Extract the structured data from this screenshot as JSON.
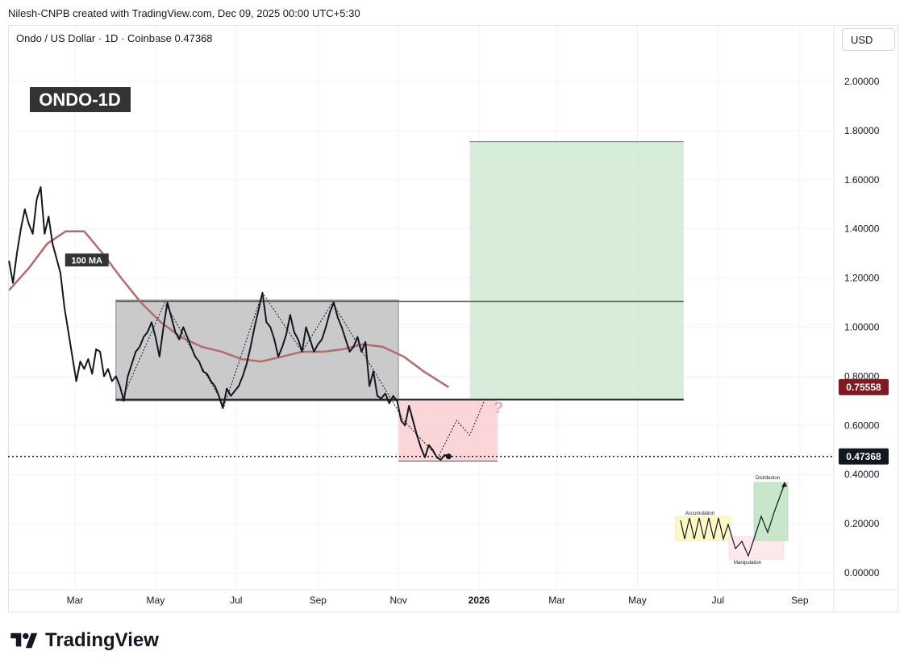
{
  "header": {
    "attribution": "Nilesh-CNPB created with TradingView.com, Dec 09, 2025 00:00 UTC+5:30"
  },
  "legend": {
    "symbol_line": "Ondo / US Dollar · 1D · Coinbase  0.47368"
  },
  "currency_button": "USD",
  "footer": {
    "brand": "TradingView"
  },
  "colors": {
    "price": "#131722",
    "ma": "#b46b6b",
    "range_box": "#b8b8b8",
    "target_box": "#c8e6c9",
    "drop_box": "#f8c8cc",
    "current_price_label": "#131722",
    "ma_price_label": "#801922"
  },
  "chart_data": {
    "type": "line",
    "title": "ONDO-1D",
    "xlabel": "",
    "ylabel": "",
    "x_ticks": [
      "Mar",
      "May",
      "Jul",
      "Sep",
      "Nov",
      "2026",
      "Mar",
      "May",
      "Jul",
      "Sep"
    ],
    "y_ticks": [
      "2.00000",
      "1.80000",
      "1.60000",
      "1.40000",
      "1.20000",
      "1.00000",
      "0.80000",
      "0.60000",
      "0.40000",
      "0.20000",
      "0.00000"
    ],
    "ylim": [
      0,
      2.0
    ],
    "grid": true,
    "price_labels": [
      {
        "label": "0.75558",
        "value": 0.75558,
        "role": "100 MA"
      },
      {
        "label": "0.47368",
        "value": 0.47368,
        "role": "last price"
      }
    ],
    "series": [
      {
        "name": "",
        "type": "line",
        "points": [
          [
            "2025-01-10",
            1.27
          ],
          [
            "2025-01-13",
            1.18
          ],
          [
            "2025-01-16",
            1.3
          ],
          [
            "2025-01-19",
            1.4
          ],
          [
            "2025-01-22",
            1.48
          ],
          [
            "2025-01-25",
            1.42
          ],
          [
            "2025-01-28",
            1.38
          ],
          [
            "2025-01-31",
            1.52
          ],
          [
            "2025-02-03",
            1.57
          ],
          [
            "2025-02-06",
            1.38
          ],
          [
            "2025-02-09",
            1.45
          ],
          [
            "2025-02-12",
            1.34
          ],
          [
            "2025-02-15",
            1.28
          ],
          [
            "2025-02-18",
            1.22
          ],
          [
            "2025-02-21",
            1.08
          ],
          [
            "2025-02-24",
            0.98
          ],
          [
            "2025-02-27",
            0.88
          ],
          [
            "2025-03-02",
            0.78
          ],
          [
            "2025-03-05",
            0.86
          ],
          [
            "2025-03-08",
            0.83
          ],
          [
            "2025-03-11",
            0.87
          ],
          [
            "2025-03-14",
            0.81
          ],
          [
            "2025-03-17",
            0.91
          ],
          [
            "2025-03-20",
            0.9
          ],
          [
            "2025-03-23",
            0.8
          ],
          [
            "2025-03-26",
            0.83
          ],
          [
            "2025-03-29",
            0.78
          ],
          [
            "2025-04-01",
            0.8
          ],
          [
            "2025-04-04",
            0.76
          ],
          [
            "2025-04-07",
            0.7
          ],
          [
            "2025-04-10",
            0.8
          ],
          [
            "2025-04-13",
            0.85
          ],
          [
            "2025-04-16",
            0.9
          ],
          [
            "2025-04-19",
            0.92
          ],
          [
            "2025-04-22",
            0.96
          ],
          [
            "2025-04-25",
            0.98
          ],
          [
            "2025-04-28",
            1.02
          ],
          [
            "2025-05-01",
            0.96
          ],
          [
            "2025-05-04",
            0.88
          ],
          [
            "2025-05-07",
            1.0
          ],
          [
            "2025-05-10",
            1.1
          ],
          [
            "2025-05-13",
            1.04
          ],
          [
            "2025-05-16",
            0.98
          ],
          [
            "2025-05-19",
            0.95
          ],
          [
            "2025-05-22",
            1.0
          ],
          [
            "2025-05-25",
            0.96
          ],
          [
            "2025-05-28",
            0.92
          ],
          [
            "2025-05-31",
            0.88
          ],
          [
            "2025-06-03",
            0.86
          ],
          [
            "2025-06-06",
            0.82
          ],
          [
            "2025-06-09",
            0.81
          ],
          [
            "2025-06-12",
            0.78
          ],
          [
            "2025-06-15",
            0.76
          ],
          [
            "2025-06-18",
            0.72
          ],
          [
            "2025-06-21",
            0.67
          ],
          [
            "2025-06-24",
            0.75
          ],
          [
            "2025-06-27",
            0.72
          ],
          [
            "2025-06-30",
            0.74
          ],
          [
            "2025-07-03",
            0.76
          ],
          [
            "2025-07-06",
            0.8
          ],
          [
            "2025-07-09",
            0.85
          ],
          [
            "2025-07-12",
            0.92
          ],
          [
            "2025-07-15",
            1.0
          ],
          [
            "2025-07-18",
            1.07
          ],
          [
            "2025-07-21",
            1.14
          ],
          [
            "2025-07-24",
            1.02
          ],
          [
            "2025-07-27",
            1.0
          ],
          [
            "2025-07-30",
            0.95
          ],
          [
            "2025-08-02",
            0.88
          ],
          [
            "2025-08-05",
            0.92
          ],
          [
            "2025-08-08",
            0.97
          ],
          [
            "2025-08-11",
            1.05
          ],
          [
            "2025-08-14",
            0.98
          ],
          [
            "2025-08-17",
            0.95
          ],
          [
            "2025-08-20",
            0.9
          ],
          [
            "2025-08-23",
            1.0
          ],
          [
            "2025-08-26",
            0.95
          ],
          [
            "2025-08-29",
            0.9
          ],
          [
            "2025-09-01",
            0.93
          ],
          [
            "2025-09-04",
            0.95
          ],
          [
            "2025-09-07",
            1.0
          ],
          [
            "2025-09-10",
            1.06
          ],
          [
            "2025-09-13",
            1.1
          ],
          [
            "2025-09-16",
            1.04
          ],
          [
            "2025-09-19",
            1.0
          ],
          [
            "2025-09-22",
            0.95
          ],
          [
            "2025-09-25",
            0.9
          ],
          [
            "2025-09-28",
            0.92
          ],
          [
            "2025-10-01",
            0.96
          ],
          [
            "2025-10-04",
            0.9
          ],
          [
            "2025-10-07",
            0.94
          ],
          [
            "2025-10-10",
            0.76
          ],
          [
            "2025-10-13",
            0.82
          ],
          [
            "2025-10-16",
            0.72
          ],
          [
            "2025-10-19",
            0.71
          ],
          [
            "2025-10-22",
            0.73
          ],
          [
            "2025-10-25",
            0.69
          ],
          [
            "2025-10-28",
            0.72
          ],
          [
            "2025-10-31",
            0.7
          ],
          [
            "2025-11-03",
            0.62
          ],
          [
            "2025-11-06",
            0.6
          ],
          [
            "2025-11-09",
            0.68
          ],
          [
            "2025-11-12",
            0.62
          ],
          [
            "2025-11-15",
            0.56
          ],
          [
            "2025-11-18",
            0.51
          ],
          [
            "2025-11-21",
            0.47
          ],
          [
            "2025-11-24",
            0.52
          ],
          [
            "2025-11-27",
            0.5
          ],
          [
            "2025-11-30",
            0.47
          ],
          [
            "2025-12-03",
            0.46
          ],
          [
            "2025-12-06",
            0.48
          ],
          [
            "2025-12-09",
            0.47368
          ]
        ]
      },
      {
        "name": "100 MA",
        "type": "line",
        "points": [
          [
            "2025-01-10",
            1.15
          ],
          [
            "2025-01-25",
            1.24
          ],
          [
            "2025-02-08",
            1.34
          ],
          [
            "2025-02-22",
            1.39
          ],
          [
            "2025-03-08",
            1.39
          ],
          [
            "2025-03-22",
            1.3
          ],
          [
            "2025-04-05",
            1.2
          ],
          [
            "2025-04-20",
            1.1
          ],
          [
            "2025-05-05",
            1.02
          ],
          [
            "2025-05-20",
            0.96
          ],
          [
            "2025-06-05",
            0.92
          ],
          [
            "2025-06-20",
            0.9
          ],
          [
            "2025-07-05",
            0.87
          ],
          [
            "2025-07-20",
            0.86
          ],
          [
            "2025-08-05",
            0.88
          ],
          [
            "2025-08-20",
            0.9
          ],
          [
            "2025-09-05",
            0.9
          ],
          [
            "2025-09-20",
            0.91
          ],
          [
            "2025-10-05",
            0.93
          ],
          [
            "2025-10-20",
            0.92
          ],
          [
            "2025-11-05",
            0.88
          ],
          [
            "2025-11-20",
            0.82
          ],
          [
            "2025-12-09",
            0.75558
          ]
        ]
      }
    ],
    "annotations": {
      "range_box": {
        "x0": "2025-04-01",
        "x1": "2025-11-01",
        "y0": 0.7,
        "y1": 1.11
      },
      "resistance_line": {
        "x0": "2025-04-01",
        "x1": "2026-06-05",
        "y": 1.105
      },
      "support_line": {
        "x0": "2025-04-01",
        "x1": "2026-06-05",
        "y": 0.705
      },
      "target_box": {
        "x0": "2025-12-25",
        "x1": "2026-06-05",
        "y0": 0.705,
        "y1": 1.755
      },
      "drop_box": {
        "x0": "2025-11-01",
        "x1": "2026-01-15",
        "y0": 0.455,
        "y1": 0.705
      },
      "question_mark": {
        "x": "2026-01-12",
        "y": 0.65,
        "text": "?"
      },
      "ma_label": {
        "text": "100 MA",
        "x": "2025-03-10",
        "y": 1.27
      },
      "zigzag": [
        [
          "2025-04-05",
          0.7
        ],
        [
          "2025-05-08",
          1.1
        ],
        [
          "2025-06-22",
          0.68
        ],
        [
          "2025-07-21",
          1.14
        ],
        [
          "2025-08-20",
          0.9
        ],
        [
          "2025-09-12",
          1.1
        ],
        [
          "2025-10-25",
          0.72
        ],
        [
          "2025-11-05",
          0.62
        ],
        [
          "2025-12-01",
          0.47
        ],
        [
          "2025-12-15",
          0.62
        ],
        [
          "2025-12-25",
          0.56
        ],
        [
          "2026-01-05",
          0.7
        ]
      ],
      "inset": {
        "labels": {
          "accumulation": "Accumulation",
          "distribution": "Distribution",
          "manipulation": "Manipulation"
        }
      }
    }
  }
}
